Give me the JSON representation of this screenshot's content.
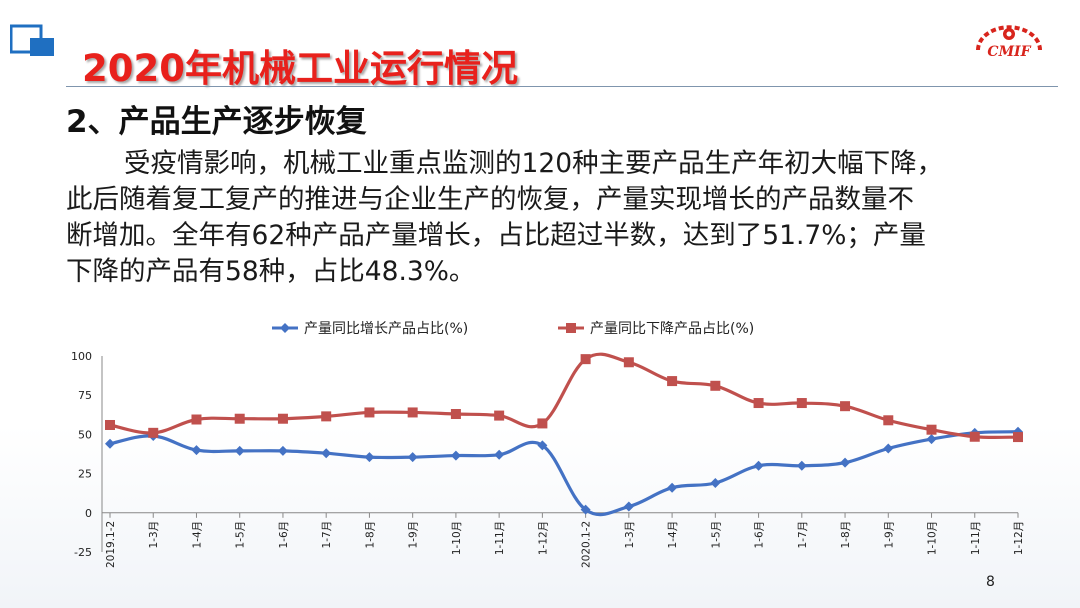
{
  "slide": {
    "title": "2020年机械工业运行情况",
    "subtitle": "2、产品生产逐步恢复",
    "paragraph_lines": [
      "受疫情影响，机械工业重点监测的120种主要产品生产年初大幅下降，",
      "此后随着复工复产的推进与企业生产的恢复，产量实现增长的产品数量不",
      "断增加。全年有62种产品产量增长，占比超过半数，达到了51.7%；产量",
      "下降的产品有58种，占比48.3%。"
    ],
    "page_number": "8",
    "logo_text": "CMIF",
    "colors": {
      "title": "#e8211c",
      "rule": "#7f95ad",
      "corner_logo": "#1f6fc1"
    },
    "icons": [
      "corner-squares-icon",
      "cmif-gear-logo"
    ]
  },
  "chart_data": {
    "type": "line",
    "categories": [
      "2019.1-2",
      "1-3月",
      "1-4月",
      "1-5月",
      "1-6月",
      "1-7月",
      "1-8月",
      "1-9月",
      "1-10月",
      "1-11月",
      "1-12月",
      "2020.1-2",
      "1-3月",
      "1-4月",
      "1-5月",
      "1-6月",
      "1-7月",
      "1-8月",
      "1-9月",
      "1-10月",
      "1-11月",
      "1-12月"
    ],
    "series": [
      {
        "name": "产量同比增长产品占比(%)",
        "color": "#4472c4",
        "marker": "diamond",
        "values": [
          44,
          49,
          40,
          39.5,
          39.5,
          38,
          35.5,
          35.5,
          36.5,
          37,
          43,
          2,
          4,
          16,
          19,
          30,
          30,
          32,
          41,
          47,
          51,
          51.7
        ]
      },
      {
        "name": "产量同比下降产品占比(%)",
        "color": "#c0504d",
        "marker": "square",
        "values": [
          56,
          51,
          59.5,
          60,
          60,
          61.5,
          64,
          64,
          63,
          62,
          57,
          98,
          96,
          84,
          81,
          70,
          70,
          68,
          59,
          53,
          48.5,
          48.3
        ]
      }
    ],
    "y_ticks": [
      -25,
      0,
      25,
      50,
      75,
      100
    ],
    "ylim": [
      -25,
      100
    ],
    "grid": false,
    "legend_position": "top",
    "smooth": true
  }
}
